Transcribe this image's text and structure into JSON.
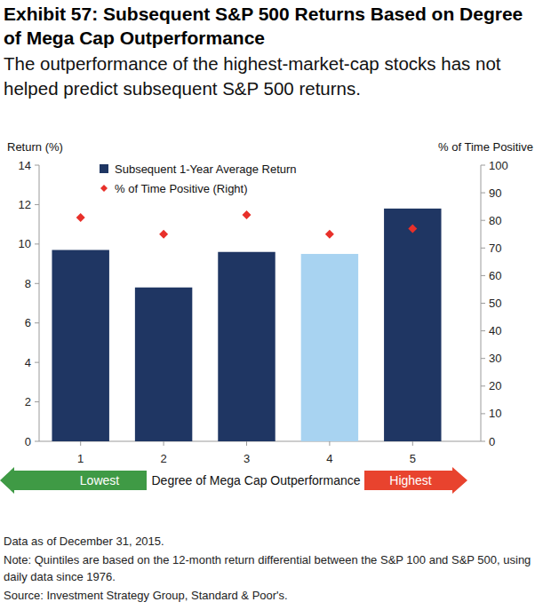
{
  "chart_data": {
    "type": "bar",
    "title": "Exhibit 57: Subsequent S&P 500 Returns Based on Degree of Mega Cap Outperformance",
    "subtitle": "The outperformance of the highest-market-cap stocks has not helped predict subsequent S&P 500 returns.",
    "y_label": "Return (%)",
    "y2_label": "% of Time Positive",
    "x_label": "Degree of Mega Cap Outperformance",
    "categories": [
      "1",
      "2",
      "3",
      "4",
      "5"
    ],
    "series": [
      {
        "name": "Subsequent 1-Year Average Return",
        "type": "bar",
        "color": "#1f3663",
        "colors": [
          "#1f3663",
          "#1f3663",
          "#1f3663",
          "#a8d3f1",
          "#1f3663"
        ],
        "values": [
          9.7,
          7.8,
          9.6,
          9.5,
          11.8
        ]
      },
      {
        "name": "% of Time Positive (Right)",
        "type": "scatter",
        "marker": "diamond",
        "color": "#e8302a",
        "axis": "y2",
        "values": [
          81,
          75,
          82,
          75,
          77
        ]
      }
    ],
    "ylim": [
      0,
      14
    ],
    "yticks": [
      0,
      2,
      4,
      6,
      8,
      10,
      12,
      14
    ],
    "y2lim": [
      0,
      100
    ],
    "y2ticks": [
      0,
      10,
      20,
      30,
      40,
      50,
      60,
      70,
      80,
      90,
      100
    ],
    "grid": false,
    "legend": "upper left",
    "annotations": [
      "Lowest",
      "Highest"
    ],
    "notes": [
      "Data as of December 31, 2015.",
      "Note: Quintiles are based on the 12-month return differential between the S&P 100 and S&P 500, using daily data since 1976.",
      "Source: Investment Strategy Group, Standard & Poor's."
    ]
  }
}
